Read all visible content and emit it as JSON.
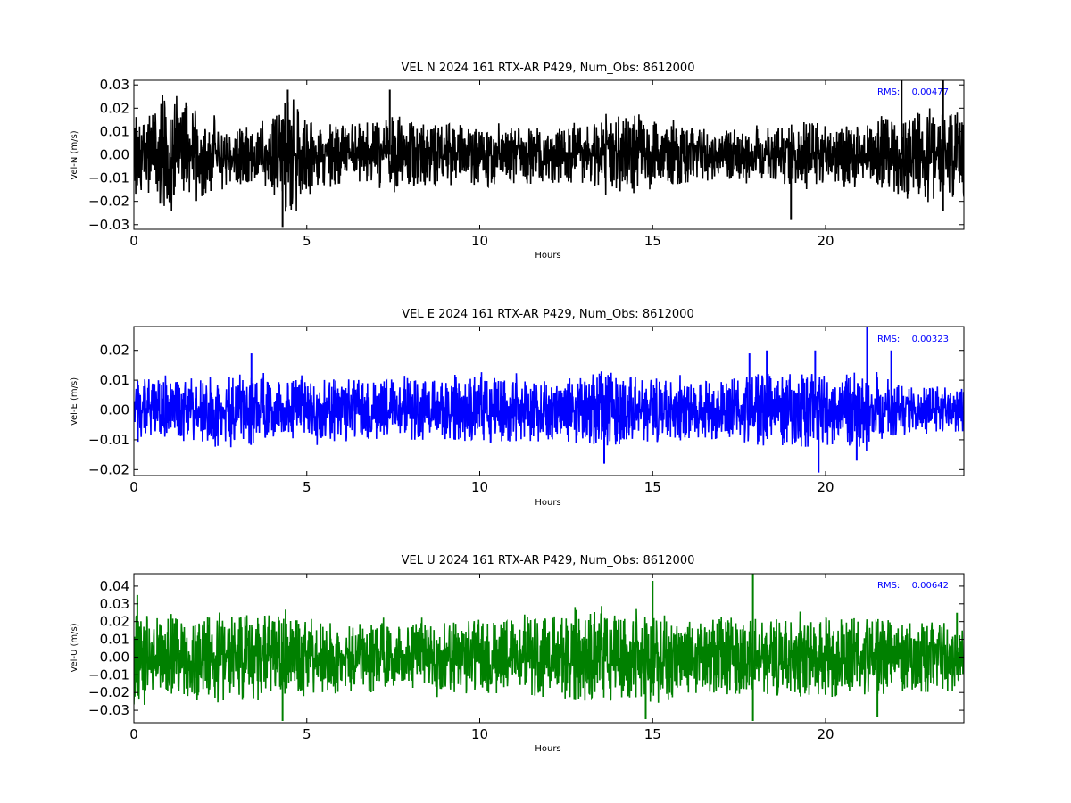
{
  "chart_data": [
    {
      "type": "line",
      "title": "VEL N 2024 161 RTX-AR  P429, Num_Obs: 8612000",
      "xlabel": "Hours",
      "ylabel": "Vel-N (m/s)",
      "xlim": [
        0,
        24
      ],
      "ylim": [
        -0.032,
        0.032
      ],
      "xticks": [
        0,
        5,
        10,
        15,
        20
      ],
      "yticks": [
        -0.03,
        -0.02,
        -0.01,
        0.0,
        0.01,
        0.02,
        0.03
      ],
      "ytick_labels": [
        "−0.03",
        "−0.02",
        "−0.01",
        "0.00",
        "0.01",
        "0.02",
        "0.03"
      ],
      "color": "#000000",
      "annotation": {
        "label": "RMS:",
        "value": "0.00477"
      },
      "series": [
        {
          "rms": 0.00477,
          "envelope": [
            {
              "x": 0.0,
              "amp": 0.019
            },
            {
              "x": 0.5,
              "amp": 0.022
            },
            {
              "x": 1.0,
              "amp": 0.024
            },
            {
              "x": 1.5,
              "amp": 0.023
            },
            {
              "x": 2.0,
              "amp": 0.018
            },
            {
              "x": 2.5,
              "amp": 0.013
            },
            {
              "x": 3.5,
              "amp": 0.012
            },
            {
              "x": 4.0,
              "amp": 0.018
            },
            {
              "x": 4.3,
              "amp": 0.025
            },
            {
              "x": 4.8,
              "amp": 0.022
            },
            {
              "x": 5.3,
              "amp": 0.015
            },
            {
              "x": 6.0,
              "amp": 0.013
            },
            {
              "x": 7.0,
              "amp": 0.015
            },
            {
              "x": 7.5,
              "amp": 0.017
            },
            {
              "x": 9.0,
              "amp": 0.013
            },
            {
              "x": 10.0,
              "amp": 0.014
            },
            {
              "x": 11.0,
              "amp": 0.013
            },
            {
              "x": 12.0,
              "amp": 0.012
            },
            {
              "x": 13.0,
              "amp": 0.012
            },
            {
              "x": 14.0,
              "amp": 0.017
            },
            {
              "x": 15.0,
              "amp": 0.015
            },
            {
              "x": 16.0,
              "amp": 0.012
            },
            {
              "x": 17.0,
              "amp": 0.011
            },
            {
              "x": 18.5,
              "amp": 0.011
            },
            {
              "x": 19.2,
              "amp": 0.016
            },
            {
              "x": 20.0,
              "amp": 0.013
            },
            {
              "x": 21.0,
              "amp": 0.012
            },
            {
              "x": 22.0,
              "amp": 0.017
            },
            {
              "x": 23.0,
              "amp": 0.019
            },
            {
              "x": 24.0,
              "amp": 0.019
            }
          ],
          "spikes": [
            {
              "x": 4.3,
              "y": -0.031
            },
            {
              "x": 4.45,
              "y": 0.028
            },
            {
              "x": 7.4,
              "y": 0.028
            },
            {
              "x": 19.0,
              "y": -0.028
            },
            {
              "x": 22.2,
              "y": 0.032
            },
            {
              "x": 23.4,
              "y": 0.032
            },
            {
              "x": 23.4,
              "y": -0.024
            }
          ]
        }
      ]
    },
    {
      "type": "line",
      "title": "VEL E 2024 161 RTX-AR  P429, Num_Obs: 8612000",
      "xlabel": "Hours",
      "ylabel": "Vel-E (m/s)",
      "xlim": [
        0,
        24
      ],
      "ylim": [
        -0.022,
        0.028
      ],
      "xticks": [
        0,
        5,
        10,
        15,
        20
      ],
      "yticks": [
        -0.02,
        -0.01,
        0.0,
        0.01,
        0.02
      ],
      "ytick_labels": [
        "−0.02",
        "−0.01",
        "0.00",
        "0.01",
        "0.02"
      ],
      "color": "#0000ff",
      "annotation": {
        "label": "RMS:",
        "value": "0.00323"
      },
      "series": [
        {
          "rms": 0.00323,
          "envelope": [
            {
              "x": 0.0,
              "amp": 0.011
            },
            {
              "x": 1.0,
              "amp": 0.01
            },
            {
              "x": 2.0,
              "amp": 0.011
            },
            {
              "x": 3.0,
              "amp": 0.013
            },
            {
              "x": 4.0,
              "amp": 0.011
            },
            {
              "x": 5.0,
              "amp": 0.01
            },
            {
              "x": 6.0,
              "amp": 0.011
            },
            {
              "x": 7.0,
              "amp": 0.01
            },
            {
              "x": 8.0,
              "amp": 0.01
            },
            {
              "x": 9.0,
              "amp": 0.01
            },
            {
              "x": 10.0,
              "amp": 0.011
            },
            {
              "x": 11.0,
              "amp": 0.012
            },
            {
              "x": 12.0,
              "amp": 0.01
            },
            {
              "x": 13.0,
              "amp": 0.012
            },
            {
              "x": 14.0,
              "amp": 0.012
            },
            {
              "x": 15.0,
              "amp": 0.011
            },
            {
              "x": 16.0,
              "amp": 0.01
            },
            {
              "x": 17.0,
              "amp": 0.01
            },
            {
              "x": 18.0,
              "amp": 0.012
            },
            {
              "x": 19.0,
              "amp": 0.013
            },
            {
              "x": 20.0,
              "amp": 0.012
            },
            {
              "x": 21.0,
              "amp": 0.013
            },
            {
              "x": 22.0,
              "amp": 0.009
            },
            {
              "x": 23.0,
              "amp": 0.008
            },
            {
              "x": 24.0,
              "amp": 0.008
            }
          ],
          "spikes": [
            {
              "x": 3.4,
              "y": 0.019
            },
            {
              "x": 13.6,
              "y": -0.018
            },
            {
              "x": 17.8,
              "y": 0.019
            },
            {
              "x": 18.3,
              "y": 0.02
            },
            {
              "x": 19.7,
              "y": 0.02
            },
            {
              "x": 19.8,
              "y": -0.021
            },
            {
              "x": 20.9,
              "y": -0.017
            },
            {
              "x": 21.2,
              "y": 0.028
            },
            {
              "x": 21.9,
              "y": 0.02
            }
          ]
        }
      ]
    },
    {
      "type": "line",
      "title": "VEL U 2024 161 RTX-AR  P429, Num_Obs: 8612000",
      "xlabel": "Hours",
      "ylabel": "Vel-U (m/s)",
      "xlim": [
        0,
        24
      ],
      "ylim": [
        -0.037,
        0.047
      ],
      "xticks": [
        0,
        5,
        10,
        15,
        20
      ],
      "yticks": [
        -0.03,
        -0.02,
        -0.01,
        0.0,
        0.01,
        0.02,
        0.03,
        0.04
      ],
      "ytick_labels": [
        "−0.03",
        "−0.02",
        "−0.01",
        "0.00",
        "0.01",
        "0.02",
        "0.03",
        "0.04"
      ],
      "color": "#008000",
      "annotation": {
        "label": "RMS:",
        "value": "0.00642"
      },
      "series": [
        {
          "rms": 0.00642,
          "envelope": [
            {
              "x": 0.0,
              "amp": 0.024
            },
            {
              "x": 1.0,
              "amp": 0.022
            },
            {
              "x": 2.0,
              "amp": 0.023
            },
            {
              "x": 3.0,
              "amp": 0.025
            },
            {
              "x": 4.0,
              "amp": 0.024
            },
            {
              "x": 5.0,
              "amp": 0.022
            },
            {
              "x": 6.0,
              "amp": 0.019
            },
            {
              "x": 7.0,
              "amp": 0.021
            },
            {
              "x": 8.0,
              "amp": 0.019
            },
            {
              "x": 9.0,
              "amp": 0.02
            },
            {
              "x": 10.0,
              "amp": 0.022
            },
            {
              "x": 11.0,
              "amp": 0.02
            },
            {
              "x": 12.0,
              "amp": 0.023
            },
            {
              "x": 13.0,
              "amp": 0.025
            },
            {
              "x": 14.0,
              "amp": 0.025
            },
            {
              "x": 15.0,
              "amp": 0.027
            },
            {
              "x": 16.0,
              "amp": 0.021
            },
            {
              "x": 17.0,
              "amp": 0.021
            },
            {
              "x": 18.0,
              "amp": 0.022
            },
            {
              "x": 19.0,
              "amp": 0.022
            },
            {
              "x": 20.0,
              "amp": 0.023
            },
            {
              "x": 21.0,
              "amp": 0.022
            },
            {
              "x": 22.0,
              "amp": 0.021
            },
            {
              "x": 23.0,
              "amp": 0.02
            },
            {
              "x": 24.0,
              "amp": 0.02
            }
          ],
          "spikes": [
            {
              "x": 0.1,
              "y": 0.035
            },
            {
              "x": 4.3,
              "y": -0.036
            },
            {
              "x": 14.8,
              "y": -0.035
            },
            {
              "x": 15.0,
              "y": 0.043
            },
            {
              "x": 17.9,
              "y": 0.047
            },
            {
              "x": 17.9,
              "y": -0.036
            },
            {
              "x": 21.5,
              "y": -0.034
            },
            {
              "x": 23.8,
              "y": 0.025
            }
          ]
        }
      ]
    }
  ]
}
